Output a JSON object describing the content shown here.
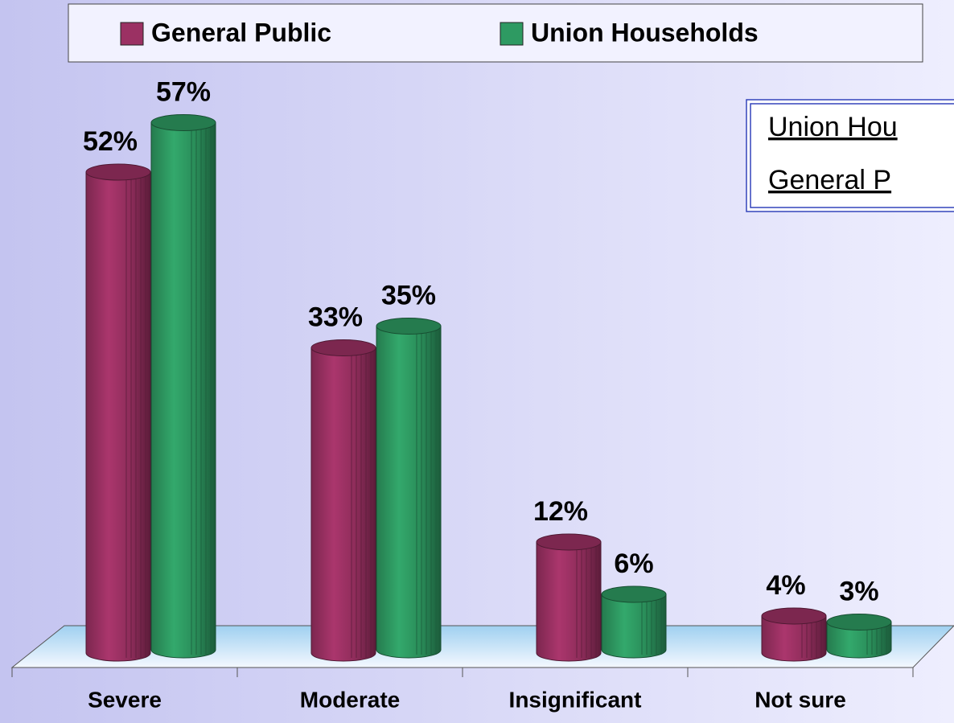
{
  "chart_data": {
    "type": "bar",
    "categories": [
      "Severe",
      "Moderate",
      "Insignificant",
      "Not sure"
    ],
    "series": [
      {
        "name": "General Public",
        "color": "#9b3163",
        "values": [
          52,
          33,
          12,
          4
        ],
        "value_labels": [
          "52%",
          "33%",
          "12%",
          "4%"
        ]
      },
      {
        "name": "Union Households",
        "color": "#2e9a62",
        "values": [
          57,
          35,
          6,
          3
        ],
        "value_labels": [
          "57%",
          "35%",
          "6%",
          "3%"
        ]
      }
    ],
    "legend": "top",
    "annotation": [
      "Union Hou",
      "General P"
    ]
  }
}
